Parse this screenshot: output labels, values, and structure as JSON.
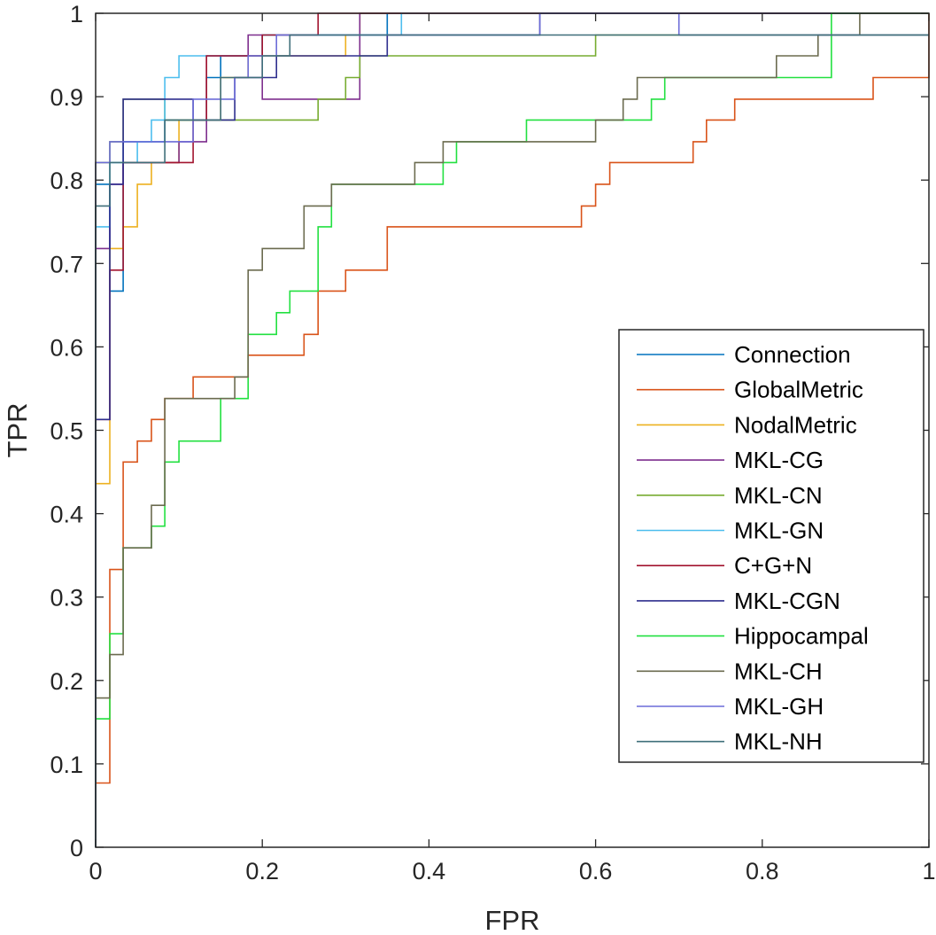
{
  "chart_data": {
    "type": "line",
    "title": "",
    "xlabel": "FPR",
    "ylabel": "TPR",
    "xlim": [
      0,
      1
    ],
    "ylim": [
      0,
      1
    ],
    "grid": false,
    "legend_position": "bottom-right",
    "xticks": [
      0,
      0.2,
      0.4,
      0.6,
      0.8,
      1
    ],
    "xtick_labels": [
      "0",
      "0.2",
      "0.4",
      "0.6",
      "0.8",
      "1"
    ],
    "yticks": [
      0,
      0.1,
      0.2,
      0.3,
      0.4,
      0.5,
      0.6,
      0.7,
      0.8,
      0.9,
      1
    ],
    "ytick_labels": [
      "0",
      "0.1",
      "0.2",
      "0.3",
      "0.4",
      "0.5",
      "0.6",
      "0.7",
      "0.8",
      "0.9",
      "1"
    ],
    "series": [
      {
        "name": "Connection",
        "color": "#0072BD",
        "x": [
          0,
          0,
          0.017,
          0.017,
          0.033,
          0.033,
          0.083,
          0.083,
          0.133,
          0.133,
          0.15,
          0.15,
          0.2,
          0.2,
          0.35,
          0.35,
          1
        ],
        "y": [
          0,
          0.795,
          0.795,
          0.667,
          0.667,
          0.846,
          0.846,
          0.872,
          0.872,
          0.923,
          0.923,
          0.949,
          0.949,
          0.974,
          0.974,
          1,
          1
        ]
      },
      {
        "name": "GlobalMetric",
        "color": "#D95319",
        "x": [
          0,
          0,
          0.017,
          0.017,
          0.033,
          0.033,
          0.05,
          0.05,
          0.067,
          0.067,
          0.083,
          0.083,
          0.117,
          0.117,
          0.183,
          0.183,
          0.25,
          0.25,
          0.267,
          0.267,
          0.3,
          0.3,
          0.35,
          0.35,
          0.583,
          0.583,
          0.6,
          0.6,
          0.617,
          0.617,
          0.717,
          0.717,
          0.733,
          0.733,
          0.767,
          0.767,
          0.933,
          0.933,
          1,
          1
        ],
        "y": [
          0,
          0.077,
          0.077,
          0.333,
          0.333,
          0.462,
          0.462,
          0.487,
          0.487,
          0.513,
          0.513,
          0.538,
          0.538,
          0.564,
          0.564,
          0.59,
          0.59,
          0.615,
          0.615,
          0.667,
          0.667,
          0.692,
          0.692,
          0.744,
          0.744,
          0.769,
          0.769,
          0.795,
          0.795,
          0.821,
          0.821,
          0.846,
          0.846,
          0.872,
          0.872,
          0.897,
          0.897,
          0.923,
          0.923,
          1
        ]
      },
      {
        "name": "NodalMetric",
        "color": "#EDB120",
        "x": [
          0,
          0,
          0.017,
          0.017,
          0.033,
          0.033,
          0.05,
          0.05,
          0.067,
          0.067,
          0.1,
          0.1,
          0.15,
          0.15,
          0.183,
          0.183,
          0.3,
          0.3,
          0.317,
          0.317,
          1
        ],
        "y": [
          0,
          0.436,
          0.436,
          0.718,
          0.718,
          0.744,
          0.744,
          0.795,
          0.795,
          0.821,
          0.821,
          0.872,
          0.872,
          0.923,
          0.923,
          0.949,
          0.949,
          0.974,
          0.974,
          1,
          1
        ]
      },
      {
        "name": "MKL-CG",
        "color": "#7E2F8E",
        "x": [
          0,
          0,
          0.017,
          0.017,
          0.033,
          0.033,
          0.067,
          0.067,
          0.1,
          0.1,
          0.117,
          0.117,
          0.133,
          0.133,
          0.183,
          0.183,
          0.2,
          0.2,
          0.3,
          0.3,
          0.317,
          0.317,
          1
        ],
        "y": [
          0,
          0.718,
          0.718,
          0.795,
          0.795,
          0.821,
          0.821,
          0.821,
          0.821,
          0.846,
          0.846,
          0.846,
          0.846,
          0.949,
          0.949,
          0.974,
          0.974,
          0.897,
          0.897,
          0.897,
          0.897,
          1,
          1
        ]
      },
      {
        "name": "MKL-CN",
        "color": "#77AC30",
        "x": [
          0,
          0,
          0.017,
          0.017,
          0.033,
          0.033,
          0.083,
          0.083,
          0.133,
          0.133,
          0.267,
          0.267,
          0.3,
          0.3,
          0.317,
          0.317,
          0.6,
          0.6,
          1
        ],
        "y": [
          0,
          0.821,
          0.821,
          0.846,
          0.846,
          0.897,
          0.897,
          0.872,
          0.872,
          0.872,
          0.872,
          0.897,
          0.897,
          0.923,
          0.923,
          0.949,
          0.949,
          0.974,
          0.974
        ]
      },
      {
        "name": "MKL-GN",
        "color": "#4DBEEE",
        "x": [
          0,
          0,
          0.017,
          0.017,
          0.05,
          0.05,
          0.067,
          0.067,
          0.083,
          0.083,
          0.1,
          0.1,
          0.133,
          0.133,
          0.2,
          0.2,
          0.367,
          0.367,
          1
        ],
        "y": [
          0,
          0.744,
          0.744,
          0.821,
          0.821,
          0.846,
          0.846,
          0.872,
          0.872,
          0.923,
          0.923,
          0.949,
          0.949,
          0.949,
          0.949,
          0.974,
          0.974,
          1,
          1
        ]
      },
      {
        "name": "C+G+N",
        "color": "#A2142F",
        "x": [
          0,
          0,
          0.017,
          0.017,
          0.033,
          0.033,
          0.083,
          0.083,
          0.117,
          0.117,
          0.133,
          0.133,
          0.183,
          0.183,
          0.2,
          0.2,
          0.267,
          0.267,
          1
        ],
        "y": [
          0,
          0.513,
          0.513,
          0.692,
          0.692,
          0.821,
          0.821,
          0.821,
          0.821,
          0.872,
          0.872,
          0.949,
          0.949,
          0.949,
          0.949,
          0.974,
          0.974,
          1,
          1
        ]
      },
      {
        "name": "MKL-CGN",
        "color": "#2E2E8E",
        "x": [
          0,
          0,
          0.017,
          0.017,
          0.033,
          0.033,
          0.117,
          0.117,
          0.133,
          0.133,
          0.167,
          0.167,
          0.183,
          0.183,
          0.217,
          0.217,
          0.267,
          0.267,
          0.35,
          0.35,
          0.533,
          0.533,
          1
        ],
        "y": [
          0,
          0.513,
          0.513,
          0.795,
          0.795,
          0.897,
          0.897,
          0.872,
          0.872,
          0.872,
          0.872,
          0.923,
          0.923,
          0.923,
          0.923,
          0.949,
          0.949,
          0.949,
          0.949,
          0.974,
          0.974,
          1,
          1
        ]
      },
      {
        "name": "Hippocampal",
        "color": "#22E040",
        "x": [
          0,
          0,
          0.017,
          0.017,
          0.033,
          0.033,
          0.067,
          0.067,
          0.083,
          0.083,
          0.1,
          0.1,
          0.15,
          0.15,
          0.167,
          0.167,
          0.183,
          0.183,
          0.2,
          0.2,
          0.217,
          0.217,
          0.233,
          0.233,
          0.267,
          0.267,
          0.283,
          0.283,
          0.417,
          0.417,
          0.433,
          0.433,
          0.517,
          0.517,
          0.6,
          0.6,
          0.667,
          0.667,
          0.683,
          0.683,
          0.817,
          0.817,
          0.883,
          0.883,
          1
        ],
        "y": [
          0,
          0.154,
          0.154,
          0.256,
          0.256,
          0.359,
          0.359,
          0.385,
          0.385,
          0.462,
          0.462,
          0.487,
          0.487,
          0.538,
          0.538,
          0.538,
          0.538,
          0.615,
          0.615,
          0.615,
          0.615,
          0.641,
          0.641,
          0.667,
          0.667,
          0.744,
          0.744,
          0.795,
          0.795,
          0.821,
          0.821,
          0.846,
          0.846,
          0.872,
          0.872,
          0.872,
          0.872,
          0.897,
          0.897,
          0.923,
          0.923,
          0.923,
          0.923,
          1,
          1
        ]
      },
      {
        "name": "MKL-CH",
        "color": "#6B6B4F",
        "x": [
          0,
          0,
          0.017,
          0.017,
          0.033,
          0.033,
          0.067,
          0.067,
          0.083,
          0.083,
          0.167,
          0.167,
          0.183,
          0.183,
          0.2,
          0.2,
          0.25,
          0.25,
          0.283,
          0.283,
          0.383,
          0.383,
          0.417,
          0.417,
          0.6,
          0.6,
          0.633,
          0.633,
          0.65,
          0.65,
          0.817,
          0.817,
          0.867,
          0.867,
          0.917,
          0.917,
          1
        ],
        "y": [
          0,
          0.179,
          0.179,
          0.231,
          0.231,
          0.359,
          0.359,
          0.41,
          0.41,
          0.538,
          0.538,
          0.564,
          0.564,
          0.692,
          0.692,
          0.718,
          0.718,
          0.769,
          0.769,
          0.795,
          0.795,
          0.821,
          0.821,
          0.846,
          0.846,
          0.872,
          0.872,
          0.897,
          0.897,
          0.923,
          0.923,
          0.949,
          0.949,
          0.974,
          0.974,
          1,
          1
        ]
      },
      {
        "name": "MKL-GH",
        "color": "#6C6CD8",
        "x": [
          0,
          0,
          0.017,
          0.017,
          0.117,
          0.117,
          0.167,
          0.167,
          0.183,
          0.183,
          0.217,
          0.217,
          0.533,
          0.533,
          0.7,
          0.7,
          1
        ],
        "y": [
          0,
          0.821,
          0.821,
          0.846,
          0.846,
          0.897,
          0.897,
          0.923,
          0.923,
          0.949,
          0.949,
          0.974,
          0.974,
          1,
          1,
          0.974,
          0.974
        ]
      },
      {
        "name": "MKL-NH",
        "color": "#3F6F7A",
        "x": [
          0,
          0,
          0.017,
          0.017,
          0.083,
          0.083,
          0.15,
          0.15,
          0.2,
          0.2,
          0.233,
          0.233,
          1
        ],
        "y": [
          0,
          0.769,
          0.769,
          0.821,
          0.821,
          0.872,
          0.872,
          0.923,
          0.923,
          0.949,
          0.949,
          0.974,
          0.974
        ]
      }
    ]
  }
}
